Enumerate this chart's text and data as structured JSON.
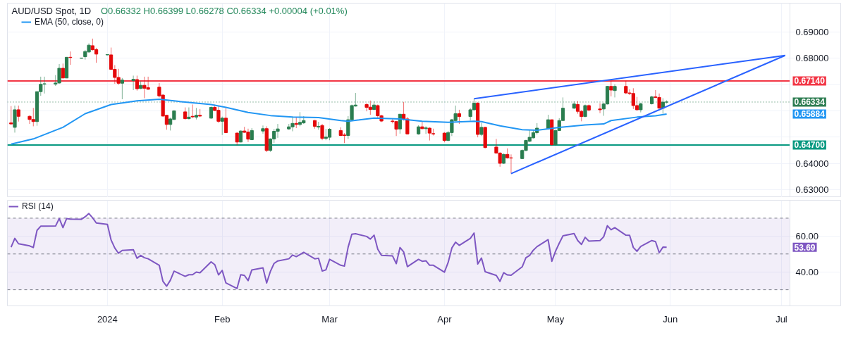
{
  "chart_data": [
    {
      "type": "candlestick",
      "title": "AUD/USD Spot, 1D",
      "subtitle": "O0.66332 H0.66399 L0.66278 C0.66334 +0.00004 (+0.01%)",
      "x": [
        "2023-12-06",
        "2023-12-07",
        "2023-12-08",
        "2023-12-11",
        "2023-12-12",
        "2023-12-13",
        "2023-12-14",
        "2023-12-15",
        "2023-12-18",
        "2023-12-19",
        "2023-12-20",
        "2023-12-21",
        "2023-12-22",
        "2023-12-25",
        "2023-12-26",
        "2023-12-27",
        "2023-12-28",
        "2023-12-29",
        "2024-01-01",
        "2024-01-02",
        "2024-01-03",
        "2024-01-04",
        "2024-01-05",
        "2024-01-08",
        "2024-01-09",
        "2024-01-10",
        "2024-01-11",
        "2024-01-12",
        "2024-01-15",
        "2024-01-16",
        "2024-01-17",
        "2024-01-18",
        "2024-01-19",
        "2024-01-22",
        "2024-01-23",
        "2024-01-24",
        "2024-01-25",
        "2024-01-26",
        "2024-01-29",
        "2024-01-30",
        "2024-01-31",
        "2024-02-01",
        "2024-02-02",
        "2024-02-05",
        "2024-02-06",
        "2024-02-07",
        "2024-02-08",
        "2024-02-09",
        "2024-02-12",
        "2024-02-13",
        "2024-02-14",
        "2024-02-15",
        "2024-02-16",
        "2024-02-19",
        "2024-02-20",
        "2024-02-21",
        "2024-02-22",
        "2024-02-23",
        "2024-02-26",
        "2024-02-27",
        "2024-02-28",
        "2024-02-29",
        "2024-03-01",
        "2024-03-04",
        "2024-03-05",
        "2024-03-06",
        "2024-03-07",
        "2024-03-08",
        "2024-03-11",
        "2024-03-12",
        "2024-03-13",
        "2024-03-14",
        "2024-03-15",
        "2024-03-18",
        "2024-03-19",
        "2024-03-20",
        "2024-03-21",
        "2024-03-22",
        "2024-03-25",
        "2024-03-26",
        "2024-03-27",
        "2024-03-28",
        "2024-03-29",
        "2024-04-01",
        "2024-04-02",
        "2024-04-03",
        "2024-04-04",
        "2024-04-05",
        "2024-04-08",
        "2024-04-09",
        "2024-04-10",
        "2024-04-11",
        "2024-04-12",
        "2024-04-15",
        "2024-04-16",
        "2024-04-17",
        "2024-04-18",
        "2024-04-19",
        "2024-04-22",
        "2024-04-23",
        "2024-04-24",
        "2024-04-25",
        "2024-04-26",
        "2024-04-29",
        "2024-04-30",
        "2024-05-01",
        "2024-05-02",
        "2024-05-03",
        "2024-05-06",
        "2024-05-07",
        "2024-05-08",
        "2024-05-09",
        "2024-05-10",
        "2024-05-13",
        "2024-05-14",
        "2024-05-15",
        "2024-05-16",
        "2024-05-17",
        "2024-05-20",
        "2024-05-21",
        "2024-05-22",
        "2024-05-23",
        "2024-05-24",
        "2024-05-27",
        "2024-05-28",
        "2024-05-29",
        "2024-05-30",
        "2024-05-31"
      ],
      "ohlc": [
        [
          0.6554,
          0.6618,
          0.6548,
          0.655
        ],
        [
          0.6537,
          0.662,
          0.6517,
          0.6604
        ],
        [
          0.6604,
          0.662,
          0.6559,
          0.6579
        ],
        [
          0.6579,
          0.6583,
          0.655,
          0.6567
        ],
        [
          0.6567,
          0.6611,
          0.6541,
          0.6559
        ],
        [
          0.6559,
          0.6673,
          0.6543,
          0.6673
        ],
        [
          0.6673,
          0.673,
          0.6657,
          0.6701
        ],
        [
          0.6702,
          0.673,
          0.6666,
          0.6703
        ],
        [
          0.6702,
          0.6736,
          0.6695,
          0.6706
        ],
        [
          0.6706,
          0.6778,
          0.6703,
          0.6762
        ],
        [
          0.6762,
          0.678,
          0.6725,
          0.6725
        ],
        [
          0.6725,
          0.6804,
          0.6725,
          0.6804
        ],
        [
          0.6804,
          0.6826,
          0.6775,
          0.6803
        ],
        [
          0.68,
          0.6802,
          0.6799,
          0.6801
        ],
        [
          0.6806,
          0.6831,
          0.6795,
          0.6826
        ],
        [
          0.6824,
          0.6857,
          0.6822,
          0.685
        ],
        [
          0.6848,
          0.6875,
          0.6829,
          0.6833
        ],
        [
          0.6833,
          0.684,
          0.6783,
          0.6816
        ],
        [
          0.6813,
          0.6815,
          0.6812,
          0.6814
        ],
        [
          0.6813,
          0.6841,
          0.6756,
          0.6758
        ],
        [
          0.6758,
          0.6774,
          0.6703,
          0.6727
        ],
        [
          0.6727,
          0.676,
          0.6699,
          0.6705
        ],
        [
          0.6705,
          0.6725,
          0.6644,
          0.6717
        ],
        [
          0.6715,
          0.6734,
          0.6679,
          0.672
        ],
        [
          0.6719,
          0.6734,
          0.6677,
          0.6684
        ],
        [
          0.6685,
          0.6712,
          0.6683,
          0.6697
        ],
        [
          0.6697,
          0.673,
          0.6648,
          0.6686
        ],
        [
          0.6688,
          0.673,
          0.668,
          0.6682
        ],
        [
          0.669,
          0.6706,
          0.6651,
          0.6657
        ],
        [
          0.666,
          0.6662,
          0.6578,
          0.658
        ],
        [
          0.6583,
          0.6583,
          0.6528,
          0.6548
        ],
        [
          0.6548,
          0.6574,
          0.6525,
          0.6569
        ],
        [
          0.6567,
          0.6602,
          0.6565,
          0.66
        ],
        [
          0.6596,
          0.6613,
          0.6567,
          0.657
        ],
        [
          0.657,
          0.6613,
          0.6567,
          0.6576
        ],
        [
          0.6579,
          0.6624,
          0.6572,
          0.6577
        ],
        [
          0.6576,
          0.6611,
          0.6567,
          0.6583
        ],
        [
          0.6583,
          0.6607,
          0.6576,
          0.658
        ],
        [
          0.6572,
          0.6616,
          0.657,
          0.6613
        ],
        [
          0.6613,
          0.6624,
          0.66,
          0.6601
        ],
        [
          0.6602,
          0.662,
          0.6554,
          0.656
        ],
        [
          0.656,
          0.6578,
          0.6508,
          0.6572
        ],
        [
          0.6572,
          0.6611,
          0.6515,
          0.6517
        ],
        [
          0.6515,
          0.6519,
          0.6469,
          0.6481
        ],
        [
          0.6481,
          0.6525,
          0.648,
          0.6523
        ],
        [
          0.6523,
          0.6539,
          0.6516,
          0.6518
        ],
        [
          0.6519,
          0.6532,
          0.6481,
          0.6492
        ],
        [
          0.649,
          0.6534,
          0.6488,
          0.6525
        ],
        [
          0.6523,
          0.6544,
          0.6513,
          0.6532
        ],
        [
          0.6532,
          0.6541,
          0.6443,
          0.6449
        ],
        [
          0.6449,
          0.6495,
          0.6444,
          0.6493
        ],
        [
          0.6493,
          0.6531,
          0.6478,
          0.6522
        ],
        [
          0.6522,
          0.655,
          0.6497,
          0.6531
        ],
        [
          0.6531,
          0.655,
          0.6528,
          0.6539
        ],
        [
          0.6539,
          0.6578,
          0.6522,
          0.6552
        ],
        [
          0.6552,
          0.6576,
          0.6534,
          0.6548
        ],
        [
          0.6548,
          0.6595,
          0.6541,
          0.6556
        ],
        [
          0.6554,
          0.658,
          0.655,
          0.6563
        ],
        [
          0.6563,
          0.6565,
          0.6532,
          0.6541
        ],
        [
          0.6538,
          0.6558,
          0.6528,
          0.6541
        ],
        [
          0.6544,
          0.655,
          0.6488,
          0.6495
        ],
        [
          0.6495,
          0.6531,
          0.6488,
          0.65
        ],
        [
          0.6499,
          0.6534,
          0.6488,
          0.653
        ],
        [
          0.6525,
          0.6537,
          0.6504,
          0.6506
        ],
        [
          0.6508,
          0.6515,
          0.6477,
          0.6506
        ],
        [
          0.6506,
          0.658,
          0.6493,
          0.6566
        ],
        [
          0.6566,
          0.6624,
          0.6563,
          0.662
        ],
        [
          0.6618,
          0.6668,
          0.6616,
          0.6622
        ],
        [
          0.6624,
          0.6629,
          0.6598,
          0.6613
        ],
        [
          0.6614,
          0.6639,
          0.6585,
          0.6605
        ],
        [
          0.6605,
          0.6636,
          0.6603,
          0.6622
        ],
        [
          0.662,
          0.6624,
          0.6569,
          0.6581
        ],
        [
          0.6581,
          0.6585,
          0.6557,
          0.6561
        ],
        [
          0.6561,
          0.6571,
          0.6552,
          0.6559
        ],
        [
          0.6559,
          0.6561,
          0.6504,
          0.653
        ],
        [
          0.6531,
          0.6587,
          0.6513,
          0.6587
        ],
        [
          0.6587,
          0.6634,
          0.6563,
          0.6567
        ],
        [
          0.6569,
          0.6576,
          0.651,
          0.6512
        ],
        [
          0.6512,
          0.6545,
          0.6509,
          0.6539
        ],
        [
          0.6539,
          0.6559,
          0.653,
          0.6532
        ],
        [
          0.6532,
          0.6541,
          0.6512,
          0.6535
        ],
        [
          0.6534,
          0.6537,
          0.6487,
          0.6515
        ],
        [
          0.6513,
          0.6532,
          0.6506,
          0.6512
        ],
        [
          0.6515,
          0.6519,
          0.648,
          0.6487
        ],
        [
          0.6487,
          0.6523,
          0.6484,
          0.6517
        ],
        [
          0.6517,
          0.6569,
          0.6504,
          0.6566
        ],
        [
          0.6563,
          0.662,
          0.656,
          0.6589
        ],
        [
          0.6589,
          0.6604,
          0.655,
          0.6578
        ],
        [
          0.6578,
          0.6611,
          0.6563,
          0.6604
        ],
        [
          0.6604,
          0.6646,
          0.6602,
          0.6629
        ],
        [
          0.6629,
          0.6633,
          0.6499,
          0.651
        ],
        [
          0.651,
          0.6554,
          0.6504,
          0.6537
        ],
        [
          0.6537,
          0.6539,
          0.6457,
          0.646
        ],
        [
          0.6462,
          0.6493,
          0.6437,
          0.6439
        ],
        [
          0.6439,
          0.6443,
          0.6387,
          0.64
        ],
        [
          0.64,
          0.6437,
          0.6398,
          0.6434
        ],
        [
          0.6434,
          0.6457,
          0.6418,
          0.6421
        ],
        [
          0.6421,
          0.6434,
          0.6361,
          0.642
        ],
        [
          0.6418,
          0.6453,
          0.6416,
          0.6449
        ],
        [
          0.6449,
          0.649,
          0.6446,
          0.6487
        ],
        [
          0.6484,
          0.6527,
          0.6481,
          0.6499
        ],
        [
          0.6497,
          0.6527,
          0.6495,
          0.6517
        ],
        [
          0.6517,
          0.6553,
          0.651,
          0.6534
        ],
        [
          0.6532,
          0.6585,
          0.6528,
          0.6566
        ],
        [
          0.6566,
          0.6566,
          0.6467,
          0.6471
        ],
        [
          0.6471,
          0.6528,
          0.6467,
          0.6525
        ],
        [
          0.6525,
          0.6572,
          0.6523,
          0.6563
        ],
        [
          0.6563,
          0.6651,
          0.6563,
          0.661
        ],
        [
          0.661,
          0.6636,
          0.6607,
          0.6626
        ],
        [
          0.6624,
          0.6637,
          0.6589,
          0.6598
        ],
        [
          0.6598,
          0.6603,
          0.656,
          0.6578
        ],
        [
          0.6578,
          0.6624,
          0.6576,
          0.662
        ],
        [
          0.662,
          0.6624,
          0.6598,
          0.6603
        ],
        [
          0.6607,
          0.6629,
          0.6591,
          0.6604
        ],
        [
          0.6607,
          0.6631,
          0.6581,
          0.6626
        ],
        [
          0.6626,
          0.6695,
          0.6624,
          0.6693
        ],
        [
          0.6693,
          0.6714,
          0.6655,
          0.6679
        ],
        [
          0.6677,
          0.6701,
          0.6651,
          0.6693
        ],
        [
          0.6693,
          0.6714,
          0.6664,
          0.6668
        ],
        [
          0.6668,
          0.6682,
          0.666,
          0.6666
        ],
        [
          0.6666,
          0.6686,
          0.6607,
          0.662
        ],
        [
          0.662,
          0.6653,
          0.6601,
          0.6604
        ],
        [
          0.6604,
          0.6631,
          0.6594,
          0.6627
        ],
        [
          0.6627,
          0.6657,
          0.6624,
          0.6653
        ],
        [
          0.6653,
          0.6679,
          0.6648,
          0.6651
        ],
        [
          0.6651,
          0.6666,
          0.6609,
          0.661
        ],
        [
          0.661,
          0.6648,
          0.6589,
          0.6633
        ],
        [
          0.66332,
          0.66399,
          0.66278,
          0.66334
        ]
      ],
      "series": [
        {
          "name": "EMA (50, close, 0)",
          "type": "line",
          "color": "#2196f3",
          "x": [
            "2023-12-06",
            "2023-12-12",
            "2023-12-20",
            "2023-12-26",
            "2024-01-02",
            "2024-01-09",
            "2024-01-15",
            "2024-01-22",
            "2024-01-29",
            "2024-02-02",
            "2024-02-08",
            "2024-02-14",
            "2024-02-20",
            "2024-02-27",
            "2024-03-04",
            "2024-03-06",
            "2024-03-13",
            "2024-03-20",
            "2024-03-26",
            "2024-04-02",
            "2024-04-09",
            "2024-04-11",
            "2024-04-16",
            "2024-04-22",
            "2024-04-26",
            "2024-05-02",
            "2024-05-09",
            "2024-05-14",
            "2024-05-16",
            "2024-05-23",
            "2024-05-28",
            "2024-05-31"
          ],
          "values": [
            0.6473,
            0.6493,
            0.6537,
            0.6589,
            0.6624,
            0.6638,
            0.6644,
            0.6633,
            0.6624,
            0.6613,
            0.6594,
            0.6582,
            0.6576,
            0.6574,
            0.6563,
            0.656,
            0.6572,
            0.6569,
            0.656,
            0.6556,
            0.656,
            0.6559,
            0.6543,
            0.6528,
            0.6526,
            0.6537,
            0.6546,
            0.655,
            0.6563,
            0.6576,
            0.6581,
            0.6588
          ]
        },
        {
          "type": "line",
          "color": "#2962ff",
          "x": [
            "2024-04-09",
            "2024-07-02"
          ],
          "values": [
            0.6646,
            0.6811
          ]
        },
        {
          "type": "line",
          "color": "#2962ff",
          "x": [
            "2024-04-19",
            "2024-07-02"
          ],
          "values": [
            0.6361,
            0.6811
          ]
        }
      ],
      "ref_lines": [
        {
          "axis": "y",
          "value": 0.6714,
          "label": "0.67140",
          "color": "#f23645",
          "line_style": "solid"
        },
        {
          "axis": "y",
          "value": 0.647,
          "label": "0.64700",
          "color": "#089981",
          "line_style": "solid"
        },
        {
          "axis": "y",
          "value": 0.66334,
          "label": "0.66334",
          "color": "#2e7d52",
          "line_style": "dotted"
        }
      ],
      "annotations": [
        "0.65884"
      ],
      "xlim": [
        "2023-12-05",
        "2024-07-17"
      ],
      "xticks": [
        {
          "value": "2024-01-01",
          "label": null
        },
        {
          "value": "2024-02-01",
          "label": null
        },
        {
          "value": "2024-03-01",
          "label": null
        },
        {
          "value": "2024-04-01",
          "label": null
        },
        {
          "value": "2024-05-01",
          "label": null
        },
        {
          "value": "2024-06-01",
          "label": null
        },
        {
          "value": "2024-07-01",
          "label": null
        }
      ],
      "ylim": [
        0.627,
        0.701
      ],
      "yticks": [
        {
          "value": 0.63,
          "label": "0.63000"
        },
        {
          "value": 0.64,
          "label": "0.64000"
        },
        {
          "value": 0.65,
          "label": null
        },
        {
          "value": 0.66,
          "label": null
        },
        {
          "value": 0.67,
          "label": null
        },
        {
          "value": 0.68,
          "label": "0.68000"
        },
        {
          "value": 0.69,
          "label": "0.69000"
        }
      ],
      "tick_labels": "y",
      "grid": true,
      "legend": "top left"
    },
    {
      "type": "line",
      "x": [
        "2023-12-06",
        "2023-12-07",
        "2023-12-08",
        "2023-12-11",
        "2023-12-12",
        "2023-12-13",
        "2023-12-14",
        "2023-12-15",
        "2023-12-18",
        "2023-12-19",
        "2023-12-20",
        "2023-12-21",
        "2023-12-22",
        "2023-12-25",
        "2023-12-26",
        "2023-12-27",
        "2023-12-28",
        "2023-12-29",
        "2024-01-01",
        "2024-01-02",
        "2024-01-03",
        "2024-01-04",
        "2024-01-05",
        "2024-01-08",
        "2024-01-09",
        "2024-01-10",
        "2024-01-11",
        "2024-01-12",
        "2024-01-15",
        "2024-01-16",
        "2024-01-17",
        "2024-01-18",
        "2024-01-19",
        "2024-01-22",
        "2024-01-23",
        "2024-01-24",
        "2024-01-25",
        "2024-01-26",
        "2024-01-29",
        "2024-01-30",
        "2024-01-31",
        "2024-02-01",
        "2024-02-02",
        "2024-02-05",
        "2024-02-06",
        "2024-02-07",
        "2024-02-08",
        "2024-02-09",
        "2024-02-12",
        "2024-02-13",
        "2024-02-14",
        "2024-02-15",
        "2024-02-16",
        "2024-02-19",
        "2024-02-20",
        "2024-02-21",
        "2024-02-22",
        "2024-02-23",
        "2024-02-26",
        "2024-02-27",
        "2024-02-28",
        "2024-02-29",
        "2024-03-01",
        "2024-03-04",
        "2024-03-05",
        "2024-03-06",
        "2024-03-07",
        "2024-03-08",
        "2024-03-11",
        "2024-03-12",
        "2024-03-13",
        "2024-03-14",
        "2024-03-15",
        "2024-03-18",
        "2024-03-19",
        "2024-03-20",
        "2024-03-21",
        "2024-03-22",
        "2024-03-25",
        "2024-03-26",
        "2024-03-27",
        "2024-03-28",
        "2024-03-29",
        "2024-04-01",
        "2024-04-02",
        "2024-04-03",
        "2024-04-04",
        "2024-04-05",
        "2024-04-08",
        "2024-04-09",
        "2024-04-10",
        "2024-04-11",
        "2024-04-12",
        "2024-04-15",
        "2024-04-16",
        "2024-04-17",
        "2024-04-18",
        "2024-04-19",
        "2024-04-22",
        "2024-04-23",
        "2024-04-24",
        "2024-04-25",
        "2024-04-26",
        "2024-04-29",
        "2024-04-30",
        "2024-05-01",
        "2024-05-02",
        "2024-05-03",
        "2024-05-06",
        "2024-05-07",
        "2024-05-08",
        "2024-05-09",
        "2024-05-10",
        "2024-05-13",
        "2024-05-14",
        "2024-05-15",
        "2024-05-16",
        "2024-05-17",
        "2024-05-20",
        "2024-05-21",
        "2024-05-22",
        "2024-05-23",
        "2024-05-24",
        "2024-05-27",
        "2024-05-28",
        "2024-05-29",
        "2024-05-30",
        "2024-05-31"
      ],
      "series": [
        {
          "name": "RSI (14)",
          "color": "#7e57c2",
          "values": [
            53.8,
            58.7,
            55.7,
            54.5,
            53.6,
            63.2,
            65.5,
            65.5,
            65.6,
            69.8,
            64.7,
            69.8,
            69.5,
            69.4,
            70.8,
            72.6,
            70.2,
            67.3,
            66.5,
            57.8,
            53.3,
            50.4,
            52.0,
            52.4,
            47.6,
            49.2,
            47.9,
            47.3,
            43.7,
            34.7,
            32.0,
            35.3,
            40.4,
            37.5,
            38.4,
            38.4,
            39.9,
            39.5,
            45.6,
            44.0,
            38.3,
            40.8,
            33.8,
            30.7,
            38.4,
            38.0,
            35.1,
            41.1,
            42.2,
            33.8,
            40.2,
            44.7,
            46.1,
            47.3,
            49.4,
            48.5,
            49.7,
            50.9,
            47.3,
            47.6,
            40.5,
            41.1,
            47.0,
            43.7,
            43.2,
            53.8,
            61.0,
            61.3,
            59.8,
            58.3,
            60.5,
            52.7,
            49.2,
            48.9,
            44.6,
            53.6,
            51.1,
            42.9,
            47.0,
            45.9,
            46.2,
            43.7,
            43.7,
            39.8,
            45.2,
            53.3,
            56.6,
            54.8,
            58.7,
            61.7,
            44.4,
            47.7,
            40.1,
            38.0,
            34.7,
            39.5,
            38.3,
            38.1,
            42.8,
            47.9,
            49.2,
            52.1,
            54.1,
            58.0,
            45.9,
            51.5,
            56.0,
            60.1,
            61.4,
            57.5,
            55.3,
            59.3,
            57.2,
            57.5,
            59.6,
            65.8,
            63.5,
            64.7,
            60.5,
            60.4,
            53.6,
            51.5,
            54.2,
            57.5,
            56.9,
            50.7,
            53.8,
            53.7
          ]
        }
      ],
      "ref_lines": [
        {
          "axis": "y",
          "value": 70,
          "color": "#787b86",
          "line_style": "dashed"
        },
        {
          "axis": "y",
          "value": 50,
          "color": "#787b86",
          "line_style": "dashed"
        },
        {
          "axis": "y",
          "value": 30,
          "color": "#787b86",
          "line_style": "dashed"
        }
      ],
      "bands": [
        {
          "axis": "y",
          "from": 30,
          "to": 70,
          "color": "#7e57c2"
        }
      ],
      "annotations": [
        "53.69"
      ],
      "xlim": [
        "2023-12-05",
        "2024-07-17"
      ],
      "xticks": [
        {
          "value": "2024-01-01",
          "label": "2024"
        },
        {
          "value": "2024-02-01",
          "label": "Feb"
        },
        {
          "value": "2024-03-01",
          "label": "Mar"
        },
        {
          "value": "2024-04-01",
          "label": "Apr"
        },
        {
          "value": "2024-05-01",
          "label": "May"
        },
        {
          "value": "2024-06-01",
          "label": "Jun"
        },
        {
          "value": "2024-07-01",
          "label": "Jul"
        }
      ],
      "ylim": [
        21,
        80
      ],
      "yticks": [
        {
          "value": 40,
          "label": "40.00"
        },
        {
          "value": 60,
          "label": "60.00"
        }
      ],
      "grid": true,
      "legend": "top left"
    }
  ]
}
